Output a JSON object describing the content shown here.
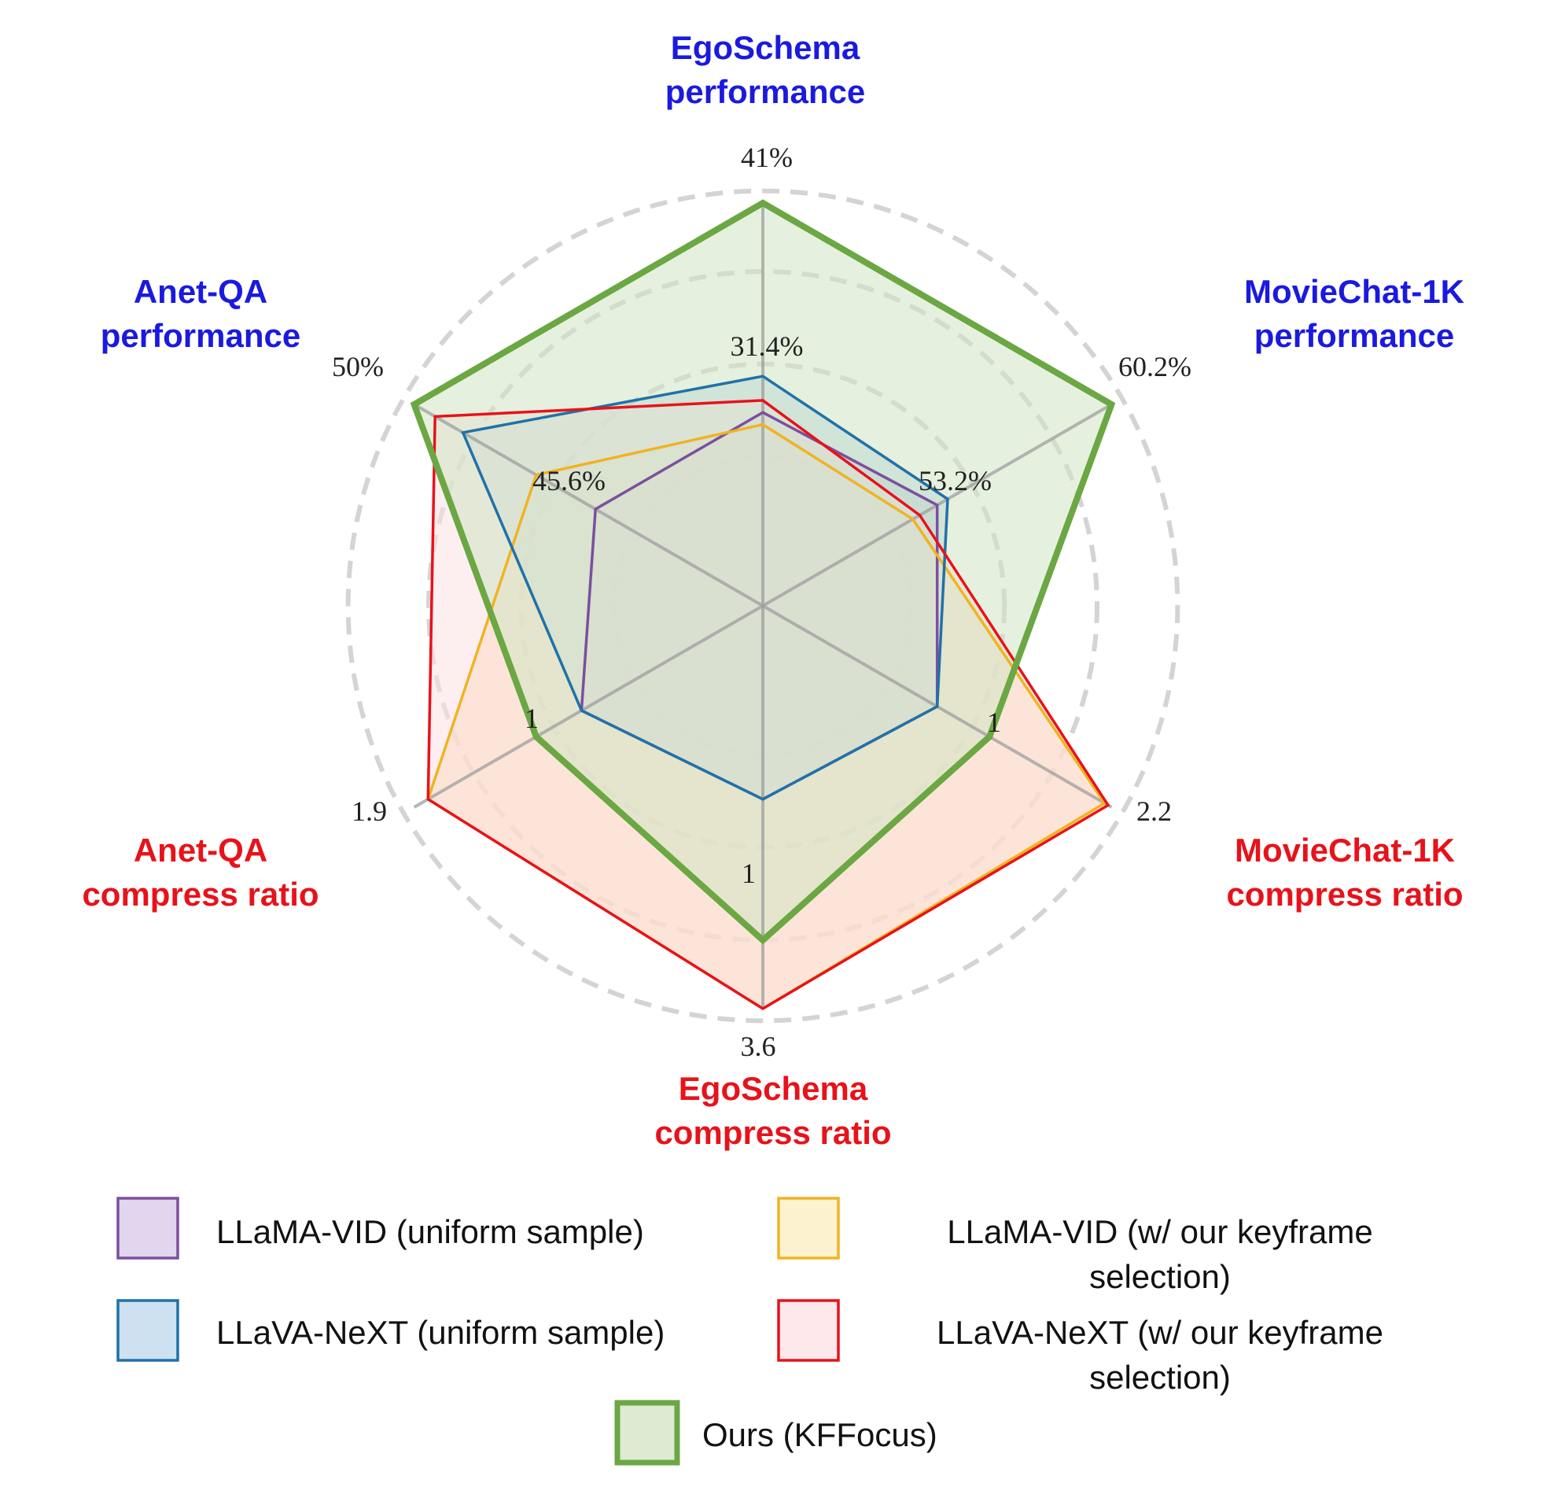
{
  "chart_data": {
    "type": "radar",
    "axes": [
      {
        "title_lines": [
          "EgoSchema",
          "performance"
        ],
        "kind": "performance",
        "tick_inner": "31.4%",
        "tick_outer": "41%"
      },
      {
        "title_lines": [
          "MovieChat-1K",
          "performance"
        ],
        "kind": "performance",
        "tick_inner": "53.2%",
        "tick_outer": "60.2%"
      },
      {
        "title_lines": [
          "MovieChat-1K",
          "compress ratio"
        ],
        "kind": "compress",
        "tick_inner": "1",
        "tick_outer": "2.2"
      },
      {
        "title_lines": [
          "EgoSchema",
          "compress ratio"
        ],
        "kind": "compress",
        "tick_inner": "1",
        "tick_outer": "3.6"
      },
      {
        "title_lines": [
          "Anet-QA",
          "compress ratio"
        ],
        "kind": "compress",
        "tick_inner": "1",
        "tick_outer": "1.9"
      },
      {
        "title_lines": [
          "Anet-QA",
          "performance"
        ],
        "kind": "performance",
        "tick_inner": "45.6%",
        "tick_outer": "50%"
      }
    ],
    "series": [
      {
        "name": "LLaMA-VID (uniform sample)",
        "stroke": "#7b4f9e",
        "fill": "#c9b6dd",
        "values": [
          0.48,
          0.5,
          0.5,
          0.48,
          0.52,
          0.48
        ]
      },
      {
        "name": "LLaMA-VID (w/ our keyframe selection)",
        "stroke": "#f0b323",
        "fill": "#fbd9a0",
        "values": [
          0.45,
          0.43,
          0.98,
          1.0,
          0.96,
          0.65
        ]
      },
      {
        "name": "LLaVA-NeXT (uniform sample)",
        "stroke": "#2171a8",
        "fill": "#a9cbe6",
        "values": [
          0.57,
          0.53,
          0.5,
          0.48,
          0.52,
          0.86
        ]
      },
      {
        "name": "LLaVA-NeXT (w/ our keyframe selection)",
        "stroke": "#e8121a",
        "fill": "#fbe0e3",
        "values": [
          0.51,
          0.45,
          0.99,
          1.0,
          0.96,
          0.94
        ]
      },
      {
        "name": "Ours (KFFocus)",
        "stroke": "#6ba743",
        "fill": "#cfe5c3",
        "values": [
          1.0,
          1.0,
          0.65,
          0.83,
          0.65,
          1.0
        ]
      }
    ],
    "legend": [
      {
        "lines": [
          "LLaMA-VID (uniform sample)"
        ],
        "stroke": "#7b4f9e",
        "fill": "#e2d5ee"
      },
      {
        "lines": [
          "LLaMA-VID (w/ our keyframe",
          "selection)"
        ],
        "stroke": "#f0b323",
        "fill": "#fdf2cf"
      },
      {
        "lines": [
          "LLaVA-NeXT (uniform sample)"
        ],
        "stroke": "#2171a8",
        "fill": "#cde1f1"
      },
      {
        "lines": [
          "LLaVA-NeXT (w/ our keyframe",
          "selection)"
        ],
        "stroke": "#e8121a",
        "fill": "#fde9ec"
      },
      {
        "lines": [
          "Ours (KFFocus)"
        ],
        "stroke": "#6ba743",
        "fill": "#dcebd2"
      }
    ],
    "colors": {
      "performance_title": "#1a1adf",
      "compress_title": "#e8121a",
      "grid": "#d4d4d4",
      "spoke": "#9e9e9e"
    }
  }
}
